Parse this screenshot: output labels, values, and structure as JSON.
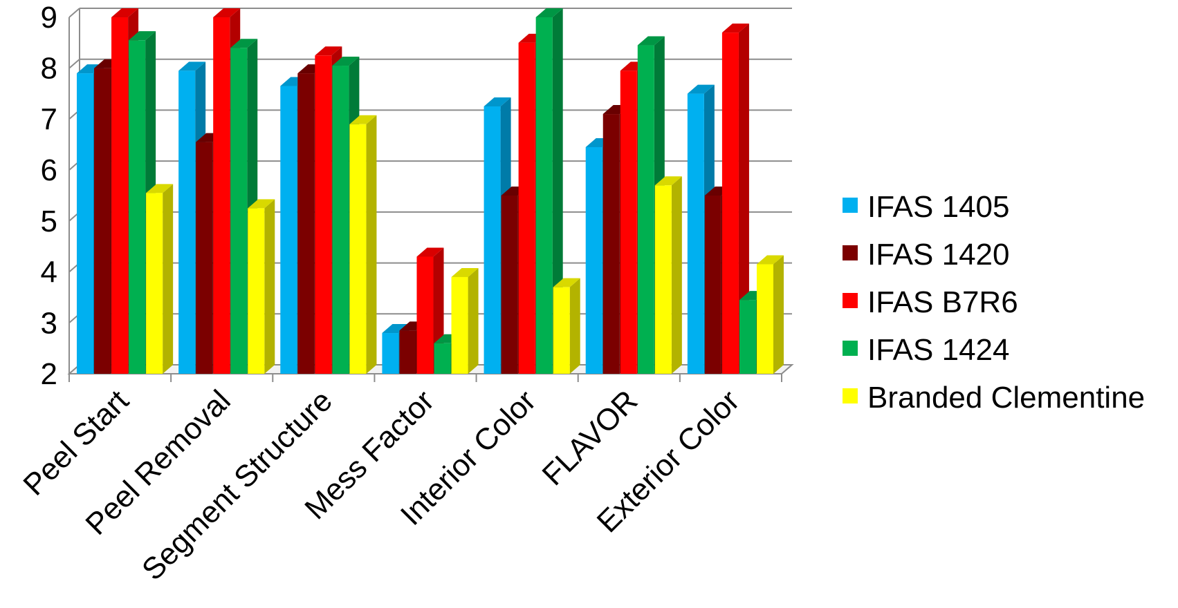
{
  "chart_data": {
    "type": "bar",
    "style": "3d-clustered-column",
    "categories": [
      "Peel Start",
      "Peel Removal",
      "Segment Structure",
      "Mess Factor",
      "Interior Color",
      "FLAVOR",
      "Exterior Color"
    ],
    "series": [
      {
        "name": "IFAS 1405",
        "color": "#00B0F0",
        "values": [
          7.9,
          7.95,
          7.65,
          2.8,
          7.25,
          6.45,
          7.5
        ]
      },
      {
        "name": "IFAS 1420",
        "color": "#7B0000",
        "values": [
          8.0,
          6.55,
          7.9,
          2.85,
          5.5,
          7.1,
          5.5
        ]
      },
      {
        "name": "IFAS B7R6",
        "color": "#FF0000",
        "values": [
          9.0,
          9.0,
          8.25,
          4.3,
          8.5,
          7.95,
          8.7
        ]
      },
      {
        "name": "IFAS 1424",
        "color": "#00B050",
        "values": [
          8.55,
          8.4,
          8.05,
          2.6,
          9.0,
          8.45,
          3.45
        ]
      },
      {
        "name": "Branded Clementine",
        "color": "#FFFF00",
        "values": [
          5.55,
          5.25,
          6.9,
          3.9,
          3.7,
          5.7,
          4.15
        ]
      }
    ],
    "y_ticks": [
      "2",
      "3",
      "4",
      "5",
      "6",
      "7",
      "8",
      "9"
    ],
    "ylim": [
      2,
      9
    ],
    "grid": true,
    "legend_position": "right"
  }
}
